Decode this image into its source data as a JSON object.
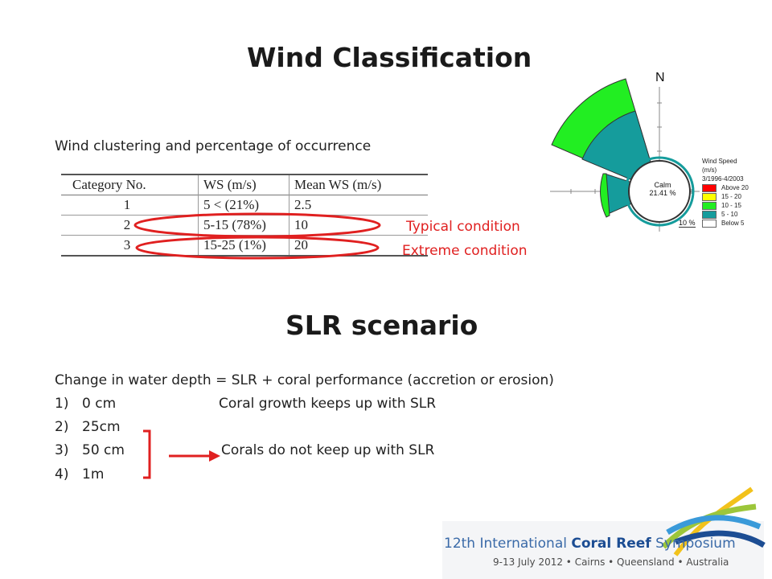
{
  "slide": {
    "title": "Wind Classification",
    "subtitle": "Wind clustering and percentage of occurrence"
  },
  "table": {
    "headers": [
      "Category No.",
      "WS (m/s)",
      "Mean WS (m/s)"
    ],
    "rows": [
      [
        "1",
        "5 < (21%)",
        "2.5"
      ],
      [
        "2",
        "5-15 (78%)",
        "10"
      ],
      [
        "3",
        "15-25 (1%)",
        "20"
      ]
    ]
  },
  "annotations": {
    "typical": "Typical condition",
    "extreme": "Extreme condition",
    "accent_color": "#e02020"
  },
  "windrose": {
    "north_label": "N",
    "calm_label": "Calm",
    "calm_value": "21.41 %",
    "ring_label": "10 %",
    "legend_title_1": "Wind Speed",
    "legend_title_2": "(m/s)",
    "legend_period": "3/1996-4/2003",
    "legend": [
      {
        "label": "Above 20",
        "color": "#ff0000"
      },
      {
        "label": "15 - 20",
        "color": "#ffff00"
      },
      {
        "label": "10 - 15",
        "color": "#22ee22"
      },
      {
        "label": "5 - 10",
        "color": "#159c9c"
      },
      {
        "label": "Below   5",
        "color": "#ffffff"
      }
    ]
  },
  "slr": {
    "title": "SLR scenario",
    "equation": "Change in water depth = SLR + coral performance (accretion or erosion)",
    "items": [
      {
        "num": "1)",
        "value": "0 cm"
      },
      {
        "num": "2)",
        "value": "25cm"
      },
      {
        "num": "3)",
        "value": "50 cm"
      },
      {
        "num": "4)",
        "value": " 1m"
      }
    ],
    "note_keeps_up": "Coral growth keeps up with SLR",
    "note_not_keep_up": "Corals do not keep up with SLR"
  },
  "footer": {
    "symposium_prefix": "12th International ",
    "symposium_highlight": "Coral Reef",
    "symposium_suffix": " Symposium",
    "details": "9-13 July 2012 • Cairns • Queensland • Australia",
    "colors": {
      "dark_blue": "#1c4d93",
      "light_blue": "#3a9ad9",
      "green": "#9cc63a",
      "yellow": "#f2c21b"
    }
  }
}
